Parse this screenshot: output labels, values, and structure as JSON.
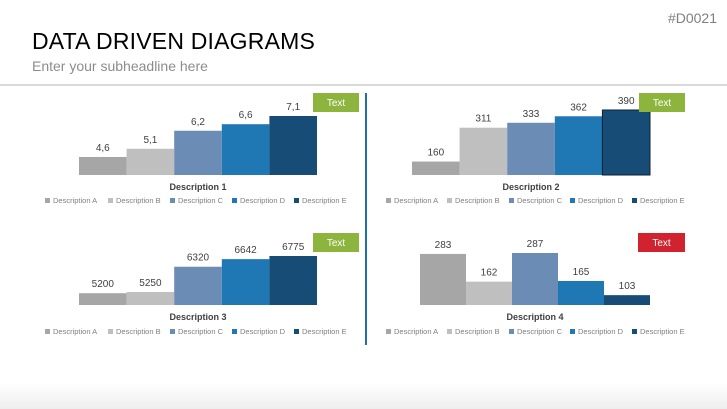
{
  "header": {
    "slide_id": "#D0021",
    "title": "DATA DRIVEN DIAGRAMS",
    "subtitle": "Enter your subheadline here"
  },
  "colors": {
    "series": [
      "#a6a6a6",
      "#bfbfbf",
      "#6b8cb5",
      "#1f77b4",
      "#174c76"
    ],
    "badge_green": "#8db53e",
    "badge_red": "#d0232f",
    "divider": "#1f6fa8"
  },
  "chart_data": [
    {
      "type": "bar",
      "title": "Description 1",
      "categories": [
        "Description A",
        "Description B",
        "Description C",
        "Description D",
        "Description E"
      ],
      "values": [
        4.6,
        5.1,
        6.2,
        6.6,
        7.1
      ],
      "value_labels": [
        "4,6",
        "5,1",
        "6,2",
        "6,6",
        "7,1"
      ],
      "badge": "Text",
      "badge_color": "green",
      "legend": "bottom"
    },
    {
      "type": "bar",
      "title": "Description 2",
      "categories": [
        "Description A",
        "Description B",
        "Description C",
        "Description D",
        "Description E"
      ],
      "values": [
        160,
        311,
        333,
        362,
        390
      ],
      "value_labels": [
        "160",
        "311",
        "333",
        "362",
        "390"
      ],
      "badge": "Text",
      "badge_color": "green",
      "legend": "bottom"
    },
    {
      "type": "bar",
      "title": "Description 3",
      "categories": [
        "Description A",
        "Description B",
        "Description C",
        "Description D",
        "Description E"
      ],
      "values": [
        5200,
        5250,
        6320,
        6642,
        6775
      ],
      "value_labels": [
        "5200",
        "5250",
        "6320",
        "6642",
        "6775"
      ],
      "badge": "Text",
      "badge_color": "green",
      "legend": "bottom"
    },
    {
      "type": "bar",
      "title": "Description 4",
      "categories": [
        "Description A",
        "Description B",
        "Description C",
        "Description D",
        "Description E"
      ],
      "values": [
        283,
        162,
        287,
        165,
        103
      ],
      "value_labels": [
        "283",
        "162",
        "287",
        "165",
        "103"
      ],
      "badge": "Text",
      "badge_color": "red",
      "legend": "bottom"
    }
  ]
}
